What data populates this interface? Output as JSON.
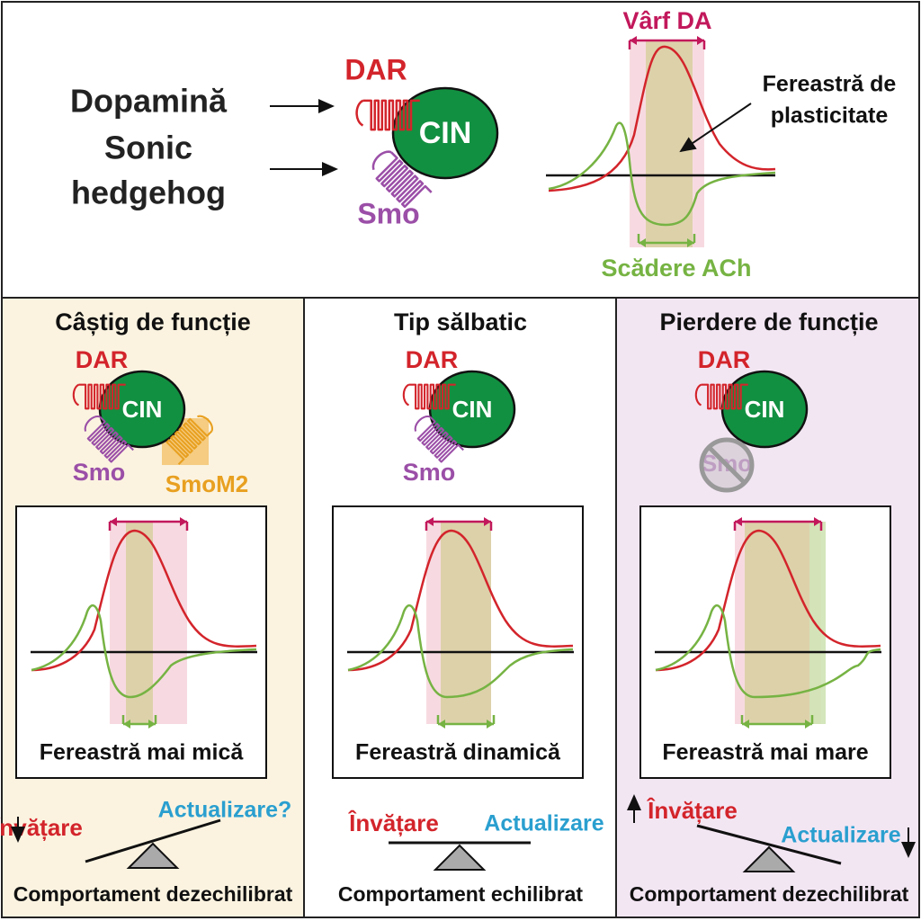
{
  "top": {
    "inputs": [
      "Dopamină",
      "Sonic",
      "hedgehog"
    ],
    "cell": {
      "receptor_1": "DAR",
      "cell": "CIN",
      "receptor_2": "Smo"
    },
    "plot": {
      "peak_label": "Vârf DA",
      "window_label": [
        "Fereastră de",
        "plasticitate"
      ],
      "dip_label": "Scădere ACh"
    }
  },
  "panels": [
    {
      "title": "Câștig de funcție",
      "cell": {
        "receptor_1": "DAR",
        "cell": "CIN",
        "receptor_2": "Smo",
        "receptor_3": "SmoM2"
      },
      "caption": "Fereastră mai mică",
      "left_label": "Învățare",
      "right_label": "Actualizare?",
      "outcome": "Comportament dezechilibrat"
    },
    {
      "title": "Tip sălbatic",
      "cell": {
        "receptor_1": "DAR",
        "cell": "CIN",
        "receptor_2": "Smo"
      },
      "caption": "Fereastră dinamică",
      "left_label": "Învățare",
      "right_label": "Actualizare",
      "outcome": "Comportament echilibrat"
    },
    {
      "title": "Pierdere de funcție",
      "cell": {
        "receptor_1": "DAR",
        "cell": "CIN",
        "receptor_2": "Smo"
      },
      "caption": "Fereastră mai mare",
      "left_label": "Învățare",
      "right_label": "Actualizare",
      "outcome": "Comportament dezechilibrat"
    }
  ]
}
